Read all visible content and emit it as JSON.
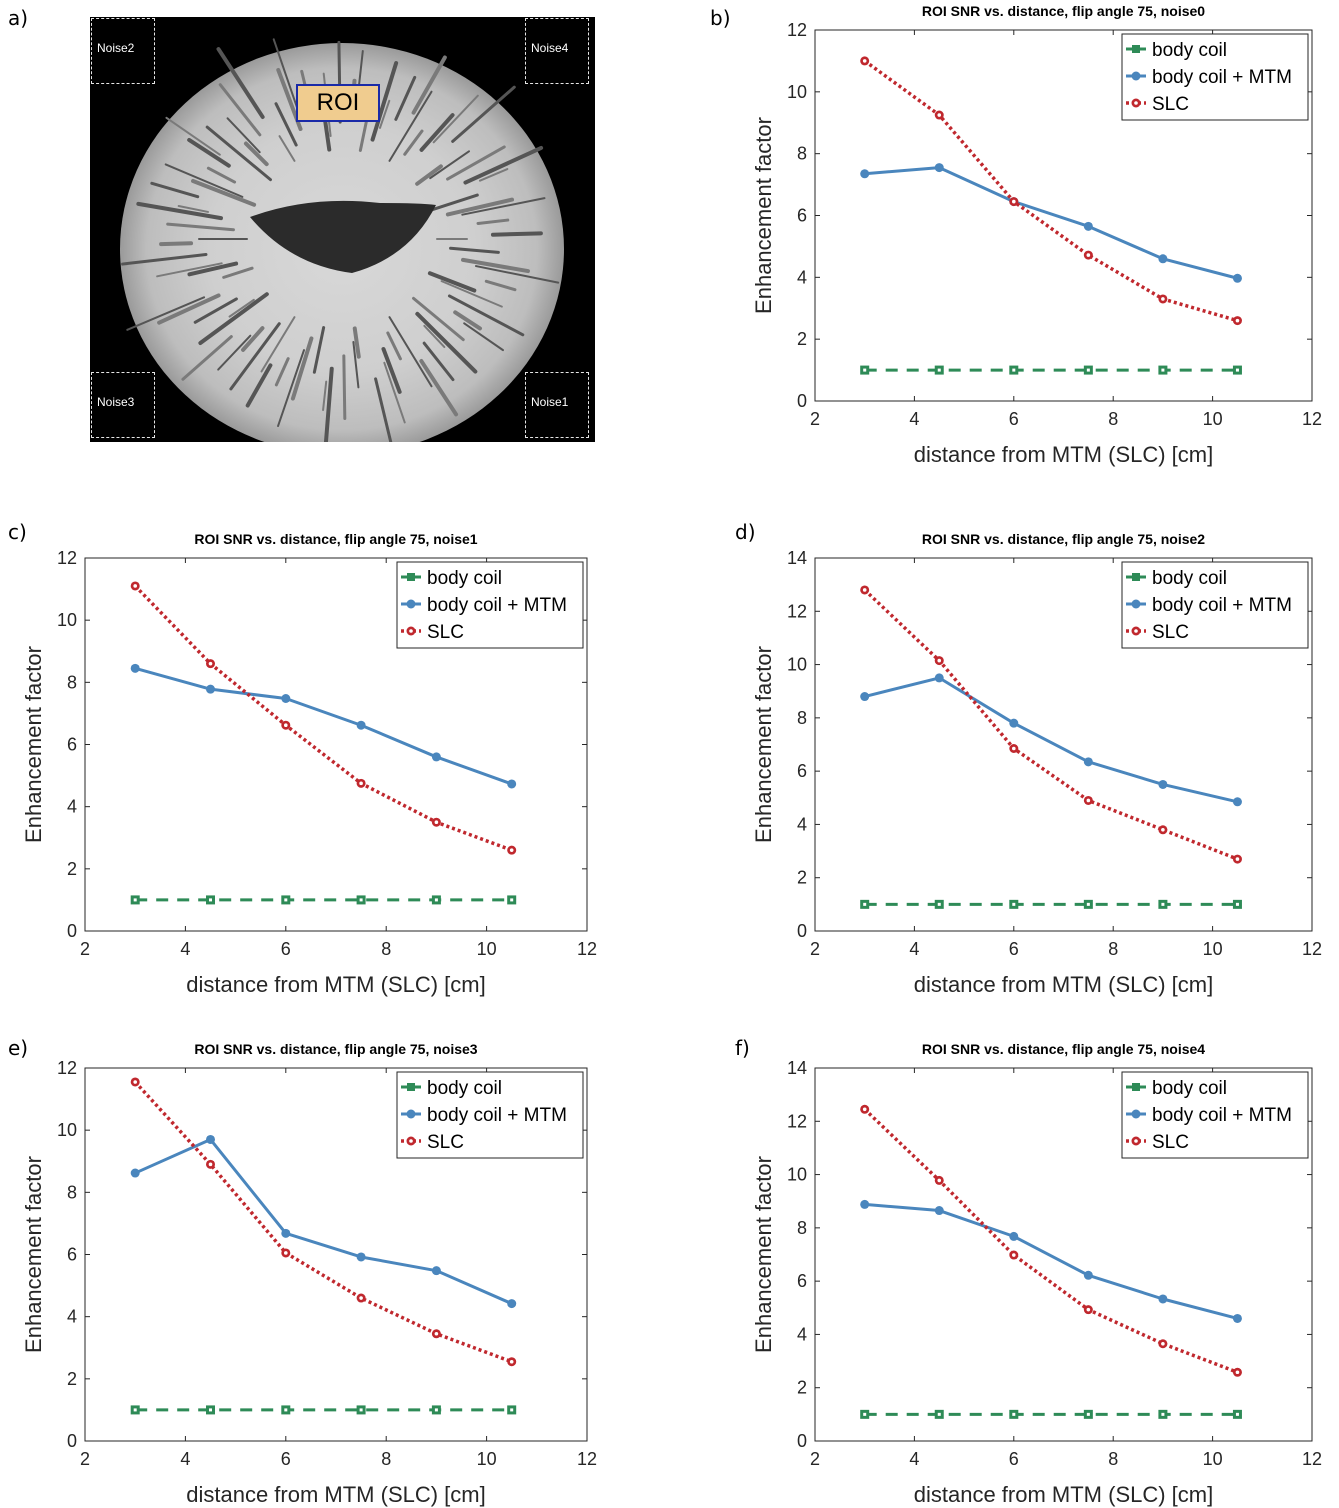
{
  "panel_labels": [
    "a)",
    "b)",
    "c)",
    "d)",
    "e)",
    "f)"
  ],
  "image_panel": {
    "roi_label": "ROI",
    "noise_labels": {
      "top_left": "Noise2",
      "top_right": "Noise4",
      "bottom_left": "Noise3",
      "bottom_right": "Noise1"
    }
  },
  "colors": {
    "body_coil": "#2e8b57",
    "body_coil_mtm": "#4a86bd",
    "slc": "#c0282e"
  },
  "chart_data": [
    {
      "type": "line",
      "title": "ROI SNR vs. distance, flip angle 75, noise0",
      "xlabel": "distance from MTM (SLC) [cm]",
      "ylabel": "Enhancement factor",
      "xlim": [
        2,
        12
      ],
      "ylim": [
        0,
        12
      ],
      "xticks": [
        2,
        4,
        6,
        8,
        10,
        12
      ],
      "yticks": [
        0,
        2,
        4,
        6,
        8,
        10,
        12
      ],
      "legend_position": "top-right",
      "x": [
        3,
        4.5,
        6,
        7.5,
        9,
        10.5
      ],
      "series": [
        {
          "name": "body coil",
          "values": [
            1,
            1,
            1,
            1,
            1,
            1
          ]
        },
        {
          "name": "body coil + MTM",
          "values": [
            7.35,
            7.55,
            6.45,
            5.65,
            4.6,
            3.97
          ]
        },
        {
          "name": "SLC",
          "values": [
            11.0,
            9.25,
            6.45,
            4.72,
            3.3,
            2.6
          ]
        }
      ]
    },
    {
      "type": "line",
      "title": "ROI SNR vs. distance, flip angle 75, noise1",
      "xlabel": "distance from MTM (SLC) [cm]",
      "ylabel": "Enhancement factor",
      "xlim": [
        2,
        12
      ],
      "ylim": [
        0,
        12
      ],
      "xticks": [
        2,
        4,
        6,
        8,
        10,
        12
      ],
      "yticks": [
        0,
        2,
        4,
        6,
        8,
        10,
        12
      ],
      "legend_position": "top-right",
      "x": [
        3,
        4.5,
        6,
        7.5,
        9,
        10.5
      ],
      "series": [
        {
          "name": "body coil",
          "values": [
            1,
            1,
            1,
            1,
            1,
            1
          ]
        },
        {
          "name": "body coil + MTM",
          "values": [
            8.45,
            7.78,
            7.48,
            6.62,
            5.6,
            4.73
          ]
        },
        {
          "name": "SLC",
          "values": [
            11.1,
            8.6,
            6.62,
            4.75,
            3.5,
            2.6
          ]
        }
      ]
    },
    {
      "type": "line",
      "title": "ROI SNR vs. distance, flip angle 75, noise2",
      "xlabel": "distance from MTM (SLC) [cm]",
      "ylabel": "Enhancement factor",
      "xlim": [
        2,
        12
      ],
      "ylim": [
        0,
        14
      ],
      "xticks": [
        2,
        4,
        6,
        8,
        10,
        12
      ],
      "yticks": [
        0,
        2,
        4,
        6,
        8,
        10,
        12,
        14
      ],
      "legend_position": "top-right",
      "x": [
        3,
        4.5,
        6,
        7.5,
        9,
        10.5
      ],
      "series": [
        {
          "name": "body coil",
          "values": [
            1,
            1,
            1,
            1,
            1,
            1
          ]
        },
        {
          "name": "body coil + MTM",
          "values": [
            8.8,
            9.5,
            7.8,
            6.35,
            5.5,
            4.85
          ]
        },
        {
          "name": "SLC",
          "values": [
            12.8,
            10.15,
            6.85,
            4.9,
            3.8,
            2.7
          ]
        }
      ]
    },
    {
      "type": "line",
      "title": "ROI SNR vs. distance, flip angle 75, noise3",
      "xlabel": "distance from MTM (SLC) [cm]",
      "ylabel": "Enhancement factor",
      "xlim": [
        2,
        12
      ],
      "ylim": [
        0,
        12
      ],
      "xticks": [
        2,
        4,
        6,
        8,
        10,
        12
      ],
      "yticks": [
        0,
        2,
        4,
        6,
        8,
        10,
        12
      ],
      "legend_position": "top-right",
      "x": [
        3,
        4.5,
        6,
        7.5,
        9,
        10.5
      ],
      "series": [
        {
          "name": "body coil",
          "values": [
            1,
            1,
            1,
            1,
            1,
            1
          ]
        },
        {
          "name": "body coil + MTM",
          "values": [
            8.62,
            9.7,
            6.68,
            5.92,
            5.48,
            4.42
          ]
        },
        {
          "name": "SLC",
          "values": [
            11.55,
            8.9,
            6.05,
            4.6,
            3.45,
            2.55
          ]
        }
      ]
    },
    {
      "type": "line",
      "title": "ROI SNR vs. distance, flip angle 75, noise4",
      "xlabel": "distance from MTM (SLC) [cm]",
      "ylabel": "Enhancement factor",
      "xlim": [
        2,
        12
      ],
      "ylim": [
        0,
        14
      ],
      "xticks": [
        2,
        4,
        6,
        8,
        10,
        12
      ],
      "yticks": [
        0,
        2,
        4,
        6,
        8,
        10,
        12,
        14
      ],
      "legend_position": "top-right",
      "x": [
        3,
        4.5,
        6,
        7.5,
        9,
        10.5
      ],
      "series": [
        {
          "name": "body coil",
          "values": [
            1,
            1,
            1,
            1,
            1,
            1
          ]
        },
        {
          "name": "body coil + MTM",
          "values": [
            8.88,
            8.65,
            7.68,
            6.22,
            5.33,
            4.6
          ]
        },
        {
          "name": "SLC",
          "values": [
            12.45,
            9.78,
            6.98,
            4.93,
            3.65,
            2.58
          ]
        }
      ]
    }
  ]
}
